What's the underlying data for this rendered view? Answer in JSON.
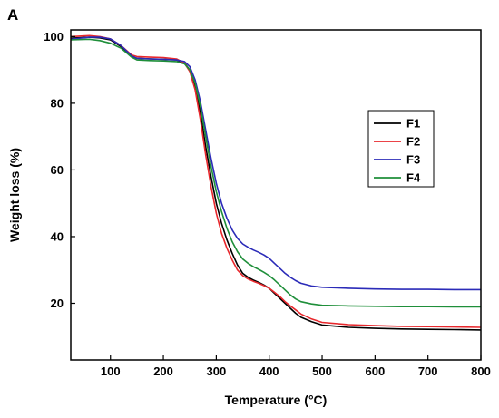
{
  "chart_data": {
    "type": "line",
    "panel_label": "A",
    "xlabel": "Temperature (°C)",
    "ylabel": "Weight loss (%)",
    "xlim": [
      25,
      800
    ],
    "ylim": [
      3,
      102
    ],
    "xticks": [
      100,
      200,
      300,
      400,
      500,
      600,
      700,
      800
    ],
    "yticks": [
      20,
      40,
      60,
      80,
      100
    ],
    "grid": false,
    "legend_position": "right",
    "series": [
      {
        "name": "F1",
        "color": "#000000",
        "x": [
          25,
          60,
          80,
          100,
          120,
          140,
          150,
          175,
          200,
          225,
          240,
          250,
          260,
          270,
          280,
          290,
          300,
          310,
          320,
          330,
          340,
          350,
          360,
          370,
          380,
          390,
          400,
          410,
          420,
          430,
          440,
          450,
          460,
          480,
          500,
          550,
          600,
          650,
          700,
          750,
          800
        ],
        "y": [
          99.5,
          99.8,
          99.6,
          99.0,
          97.0,
          94.0,
          93.5,
          93.3,
          93.2,
          93.0,
          92.0,
          90.0,
          85.0,
          77.0,
          67.0,
          58.0,
          50.0,
          44.0,
          39.0,
          35.0,
          31.5,
          29.0,
          27.8,
          27.0,
          26.3,
          25.5,
          24.5,
          23.0,
          21.5,
          20.0,
          18.5,
          17.0,
          15.8,
          14.5,
          13.5,
          12.8,
          12.5,
          12.3,
          12.2,
          12.1,
          12.0
        ]
      },
      {
        "name": "F2",
        "color": "#e8282d",
        "x": [
          25,
          60,
          80,
          100,
          120,
          140,
          150,
          175,
          200,
          225,
          240,
          250,
          260,
          270,
          280,
          290,
          300,
          310,
          320,
          330,
          340,
          350,
          360,
          370,
          380,
          390,
          400,
          410,
          420,
          430,
          440,
          450,
          460,
          480,
          500,
          550,
          600,
          650,
          700,
          750,
          800
        ],
        "y": [
          100.0,
          100.3,
          100.0,
          99.3,
          97.3,
          94.5,
          94.0,
          93.8,
          93.7,
          93.3,
          92.0,
          89.5,
          84.0,
          75.0,
          64.5,
          55.0,
          47.0,
          41.0,
          36.5,
          33.0,
          30.0,
          28.3,
          27.3,
          26.6,
          26.0,
          25.3,
          24.5,
          23.3,
          22.0,
          20.5,
          19.2,
          18.0,
          16.8,
          15.3,
          14.3,
          13.6,
          13.3,
          13.1,
          13.0,
          12.9,
          12.8
        ]
      },
      {
        "name": "F3",
        "color": "#2b2bb8",
        "x": [
          25,
          60,
          80,
          100,
          120,
          140,
          150,
          175,
          200,
          225,
          240,
          250,
          260,
          270,
          280,
          290,
          300,
          310,
          320,
          330,
          340,
          350,
          360,
          370,
          380,
          390,
          400,
          410,
          420,
          430,
          440,
          450,
          460,
          480,
          500,
          550,
          600,
          650,
          700,
          750,
          800
        ],
        "y": [
          99.2,
          99.8,
          99.8,
          99.3,
          97.3,
          94.2,
          93.5,
          93.3,
          93.2,
          93.0,
          92.5,
          91.0,
          87.0,
          80.5,
          72.0,
          63.5,
          56.0,
          50.0,
          45.5,
          42.0,
          39.5,
          37.8,
          36.8,
          36.0,
          35.3,
          34.5,
          33.5,
          32.0,
          30.5,
          29.0,
          27.8,
          26.8,
          26.0,
          25.2,
          24.8,
          24.5,
          24.3,
          24.2,
          24.2,
          24.1,
          24.1
        ]
      },
      {
        "name": "F4",
        "color": "#1f8f3a",
        "x": [
          25,
          60,
          80,
          100,
          120,
          140,
          150,
          175,
          200,
          225,
          240,
          250,
          260,
          270,
          280,
          290,
          300,
          310,
          320,
          330,
          340,
          350,
          360,
          370,
          380,
          390,
          400,
          410,
          420,
          430,
          440,
          450,
          460,
          480,
          500,
          550,
          600,
          650,
          700,
          750,
          800
        ],
        "y": [
          99.0,
          99.2,
          98.8,
          98.0,
          96.5,
          93.8,
          93.0,
          92.8,
          92.7,
          92.5,
          91.8,
          90.0,
          86.0,
          79.0,
          70.0,
          61.0,
          53.5,
          47.5,
          42.5,
          38.5,
          35.5,
          33.3,
          32.0,
          31.0,
          30.2,
          29.3,
          28.3,
          27.0,
          25.5,
          24.0,
          22.5,
          21.3,
          20.5,
          19.8,
          19.4,
          19.2,
          19.1,
          19.0,
          19.0,
          18.9,
          18.9
        ]
      }
    ]
  }
}
